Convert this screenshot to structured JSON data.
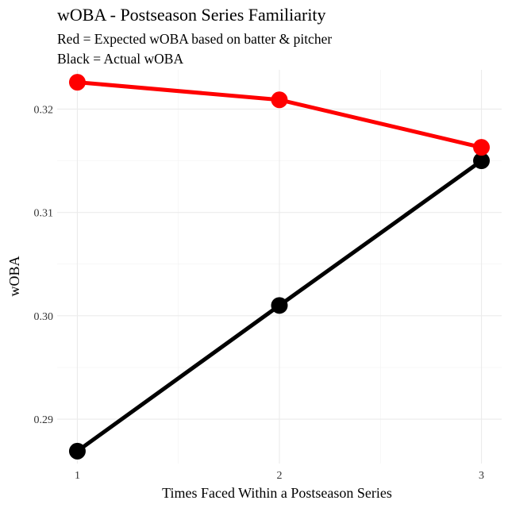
{
  "chart_data": {
    "type": "line",
    "title": "wOBA - Postseason Series Familiarity",
    "subtitle_lines": [
      "Red = Expected wOBA based on batter & pitcher",
      "Black = Actual wOBA"
    ],
    "xlabel": "Times Faced Within a Postseason Series",
    "ylabel": "wOBA",
    "x": [
      1,
      2,
      3
    ],
    "x_tick_labels": [
      "1",
      "2",
      "3"
    ],
    "y_ticks": [
      0.29,
      0.3,
      0.31,
      0.32
    ],
    "y_tick_labels": [
      "0.29",
      "0.30",
      "0.31",
      "0.32"
    ],
    "xlim": [
      0.9,
      3.1
    ],
    "ylim": [
      0.2857,
      0.3238
    ],
    "grid": true,
    "legend": "none",
    "series": [
      {
        "name": "Expected wOBA",
        "color": "#ff0000",
        "values": [
          0.3226,
          0.3209,
          0.3163
        ]
      },
      {
        "name": "Actual wOBA",
        "color": "#000000",
        "values": [
          0.2869,
          0.301,
          0.315
        ]
      }
    ]
  }
}
